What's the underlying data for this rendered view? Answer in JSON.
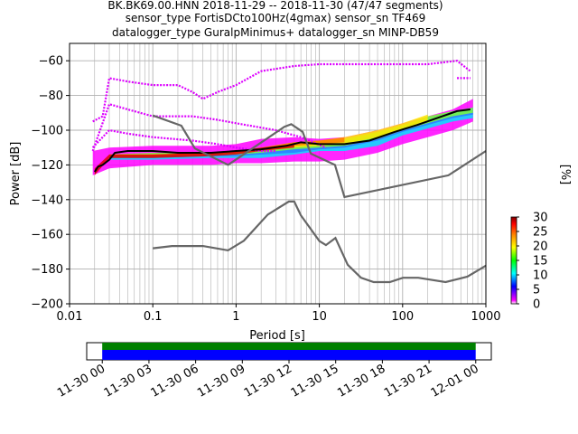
{
  "chart_data": {
    "type": "line",
    "title": [
      "BK.BK69.00.HNN   2018-11-29 -- 2018-11-30  (47/47 segments)",
      "sensor_type FortisDCto100Hz(4gmax) sensor_sn TF469",
      "datalogger_type GuralpMinimus+ datalogger_sn MINP-DB59"
    ],
    "xlabel": "Period [s]",
    "ylabel": "Power [dB]",
    "x_scale": "log",
    "xlim": [
      0.01,
      1000
    ],
    "ylim": [
      -200,
      -50
    ],
    "x_ticks": [
      {
        "value": 0.01,
        "label": "0.01"
      },
      {
        "value": 0.1,
        "label": "0.1"
      },
      {
        "value": 1,
        "label": "1"
      },
      {
        "value": 10,
        "label": "10"
      },
      {
        "value": 100,
        "label": "100"
      },
      {
        "value": 1000,
        "label": "1000"
      }
    ],
    "y_ticks": [
      {
        "value": -60,
        "label": "−60"
      },
      {
        "value": -80,
        "label": "−80"
      },
      {
        "value": -100,
        "label": "−100"
      },
      {
        "value": -120,
        "label": "−120"
      },
      {
        "value": -140,
        "label": "−140"
      },
      {
        "value": -160,
        "label": "−160"
      },
      {
        "value": -180,
        "label": "−180"
      },
      {
        "value": -200,
        "label": "−200"
      }
    ],
    "grid": true,
    "noise_models": [
      {
        "x": [
          0.1,
          0.17,
          0.4,
          0.8,
          1.24,
          2.4,
          4.3,
          5.0,
          6.0,
          10.0,
          12.0,
          15.6,
          21.9,
          31.6,
          45.0,
          70.0,
          101.0,
          154.0,
          328.0,
          600.0,
          1000.0
        ],
        "values": [
          -168.0,
          -166.7,
          -166.7,
          -169.2,
          -163.7,
          -148.6,
          -141.1,
          -141.1,
          -149.0,
          -163.8,
          -166.2,
          -162.1,
          -177.5,
          -185.0,
          -187.5,
          -187.5,
          -185.0,
          -185.0,
          -187.5,
          -184.4,
          -178.0
        ]
      },
      {
        "x": [
          0.1,
          0.22,
          0.32,
          0.8,
          3.8,
          4.6,
          6.3,
          7.9,
          15.4,
          20.0,
          354.8,
          1000.0
        ],
        "values": [
          -91.5,
          -97.4,
          -110.5,
          -120.0,
          -98.0,
          -96.5,
          -101.0,
          -113.5,
          -120.0,
          -138.5,
          -126.0,
          -112.0
        ]
      }
    ],
    "mode_curve": {
      "x": [
        0.02,
        0.022,
        0.025,
        0.03,
        0.035,
        0.05,
        0.1,
        0.2,
        0.5,
        1,
        2,
        4,
        6,
        10,
        20,
        40,
        80,
        150,
        300,
        450,
        650
      ],
      "values": [
        -124,
        -121,
        -120,
        -117,
        -113,
        -112,
        -112,
        -113,
        -113,
        -112,
        -111,
        -109,
        -107,
        -108,
        -108,
        -106,
        -101,
        -97,
        -92,
        -89,
        -88
      ]
    },
    "density_bands": [
      {
        "x": [
          0.019,
          0.03,
          0.1,
          0.5,
          1,
          2,
          5,
          10,
          20,
          50,
          100,
          200,
          400,
          700
        ],
        "low": [
          -126,
          -122,
          -120,
          -120,
          -119,
          -119,
          -118,
          -118,
          -117,
          -113,
          -108,
          -104,
          -100,
          -95
        ],
        "high": [
          -112,
          -110,
          -109,
          -109,
          -108,
          -105,
          -104,
          -105,
          -104,
          -100,
          -96,
          -92,
          -88,
          -82
        ],
        "color": "#ff00ff"
      },
      {
        "x": [
          0.03,
          0.1,
          0.5,
          1,
          2,
          5,
          10,
          20,
          50,
          100,
          200,
          400,
          700
        ],
        "low": [
          -117,
          -117,
          -116,
          -116,
          -116,
          -114,
          -112,
          -112,
          -109,
          -103,
          -99,
          -95,
          -93
        ],
        "high": [
          -114,
          -114,
          -114,
          -113,
          -111,
          -110,
          -108,
          -107,
          -104,
          -99,
          -94,
          -90,
          -87
        ],
        "color": "#00e5ff"
      },
      {
        "x": [
          0.03,
          0.1,
          0.5,
          1,
          2,
          5,
          10,
          20,
          50,
          100,
          200,
          400,
          700
        ],
        "low": [
          -116,
          -116,
          -115,
          -115,
          -114,
          -113,
          -111,
          -110,
          -106,
          -101,
          -97,
          -93,
          -91
        ],
        "high": [
          -114,
          -114,
          -113,
          -112,
          -110,
          -108,
          -107,
          -106,
          -102,
          -98,
          -93,
          -89,
          -87
        ],
        "color": "#2f7bff"
      },
      {
        "x": [
          0.03,
          0.1,
          0.5,
          1,
          2,
          5,
          10,
          20,
          50,
          100,
          200,
          400,
          700
        ],
        "low": [
          -115,
          -115,
          -114,
          -114,
          -113,
          -111,
          -110,
          -109,
          -105,
          -100,
          -96,
          -92,
          -90
        ],
        "high": [
          -114,
          -113,
          -113,
          -112,
          -110,
          -107,
          -106,
          -105,
          -101,
          -97,
          -92,
          -89,
          -87
        ],
        "color": "#7bff3a"
      },
      {
        "x": [
          0.03,
          0.1,
          0.5,
          1,
          2,
          5,
          10,
          20,
          50,
          100,
          200
        ],
        "low": [
          -115,
          -115,
          -114,
          -113,
          -112,
          -110,
          -109,
          -108,
          -104,
          -99,
          -95
        ],
        "high": [
          -114,
          -114,
          -113,
          -112,
          -110,
          -107,
          -106,
          -104,
          -100,
          -96,
          -91
        ],
        "color": "#ffe800"
      },
      {
        "x": [
          0.03,
          0.1,
          0.5,
          1,
          2,
          5,
          10,
          20
        ],
        "low": [
          -115,
          -115,
          -114,
          -113,
          -111,
          -109,
          -108,
          -107
        ],
        "high": [
          -114,
          -114,
          -113,
          -112,
          -110,
          -107,
          -106,
          -104
        ],
        "color": "#ff7a00"
      },
      {
        "x": [
          0.02,
          0.03,
          0.1,
          0.5,
          1,
          2,
          5
        ],
        "low": [
          -126,
          -116,
          -116,
          -115,
          -114,
          -112,
          -110
        ],
        "high": [
          -122,
          -114,
          -114,
          -113,
          -112,
          -110,
          -108
        ],
        "color": "#e00000"
      }
    ],
    "outlier_curves": [
      {
        "x": [
          0.019,
          0.025,
          0.03,
          0.05,
          0.1,
          0.2,
          0.3,
          0.4,
          0.6,
          1,
          2,
          5,
          10,
          20,
          50,
          100,
          200,
          300,
          450,
          650
        ],
        "values": [
          -95,
          -92,
          -70,
          -72,
          -74,
          -74,
          -78,
          -82,
          -78,
          -74,
          -66,
          -63,
          -62,
          -62,
          -62,
          -62,
          -62,
          -61,
          -60,
          -66
        ]
      },
      {
        "x": [
          0.019,
          0.03,
          0.05,
          0.1,
          0.3,
          0.6,
          1,
          3,
          6,
          12
        ],
        "values": [
          -112,
          -85,
          -88,
          -92,
          -92,
          -94,
          -96,
          -100,
          -104,
          -110
        ]
      },
      {
        "x": [
          0.019,
          0.03,
          0.05,
          0.1,
          0.3,
          0.6,
          1,
          2,
          3
        ],
        "values": [
          -110,
          -100,
          -102,
          -104,
          -106,
          -108,
          -110,
          -112,
          -112
        ]
      },
      {
        "x": [
          450,
          650
        ],
        "values": [
          -70,
          -70
        ]
      }
    ],
    "colorbar": {
      "label": "[%]",
      "min": 0,
      "max": 30,
      "ticks": [
        "0",
        "5",
        "10",
        "15",
        "20",
        "25",
        "30"
      ],
      "colors": [
        "#ffffff",
        "#ff00ff",
        "#0000ff",
        "#00ffff",
        "#00ff00",
        "#ffff00",
        "#ff8000",
        "#ff0000",
        "#800000"
      ]
    },
    "time_coverage": {
      "ticks": [
        "11-30 00",
        "11-30 03",
        "11-30 06",
        "11-30 09",
        "11-30 12",
        "11-30 15",
        "11-30 18",
        "11-30 21",
        "12-01 00"
      ],
      "range_hours": [
        -1,
        25
      ],
      "data_span_hours": [
        0,
        24
      ],
      "top_color": "#008000",
      "bottom_color": "#0000ff"
    }
  }
}
